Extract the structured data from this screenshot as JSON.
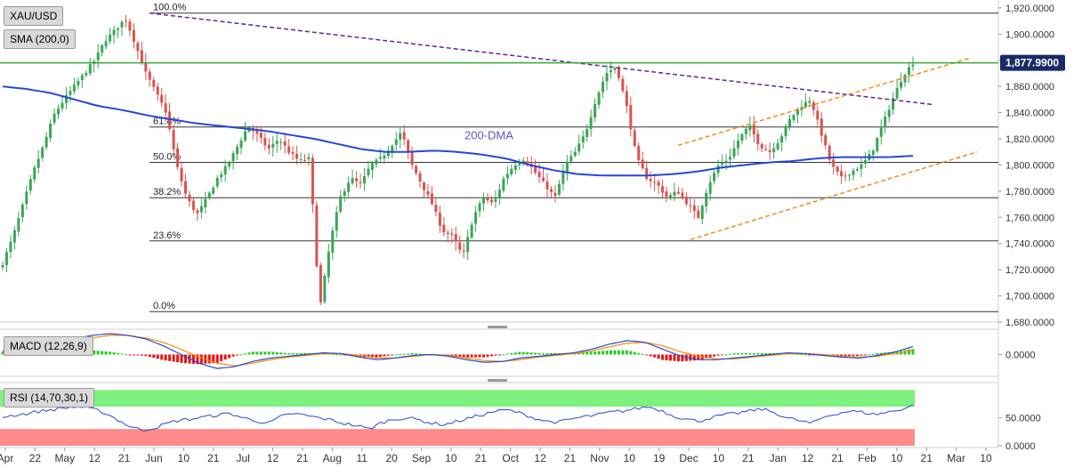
{
  "instrument": "XAU/USD",
  "colors": {
    "background": "#ffffff",
    "up_candle": "#3aa657",
    "down_candle": "#d9534f",
    "sma": "#2747d8",
    "fib_line": "#333333",
    "resistance_line": "#5b2a9a",
    "channel_line": "#f08c1a",
    "price_marker_line": "#33aa33",
    "price_badge": "#1a2c66",
    "macd_line": "#2747d8",
    "signal_line": "#ff8c00",
    "hist_pos": "#22cc22",
    "hist_neg": "#ee1111",
    "rsi_line": "#2747d8",
    "rsi_overbought_zone": "#7df07d",
    "rsi_oversold_zone": "#ff8a8a"
  },
  "indicators": {
    "sma_label": "SMA (200,0)",
    "macd_label": "MACD (12,26,9)",
    "rsi_label": "RSI (14,70,30,1)"
  },
  "annotations": {
    "dma_label": "200-DMA",
    "current_price": "1,877.9900"
  },
  "chart_data": {
    "type": "candlestick",
    "x_axis_labels": [
      "Apr",
      "22",
      "May",
      "12",
      "21",
      "Jun",
      "10",
      "21",
      "Jul",
      "12",
      "21",
      "Aug",
      "11",
      "20",
      "Sep",
      "10",
      "21",
      "Oct",
      "12",
      "21",
      "Nov",
      "10",
      "19",
      "Dec",
      "10",
      "21",
      "Jan",
      "12",
      "21",
      "Feb",
      "10",
      "21",
      "Mar",
      "10"
    ],
    "price_ticks": [
      "1,920.0000",
      "1,900.0000",
      "1,880.0000",
      "1,860.0000",
      "1,840.0000",
      "1,820.0000",
      "1,800.0000",
      "1,780.0000",
      "1,760.0000",
      "1,740.0000",
      "1,720.0000",
      "1,700.0000",
      "1,680.0000"
    ],
    "price_range": [
      1680,
      1926
    ],
    "fibonacci_levels": [
      {
        "label": "100.0%",
        "price": 1916
      },
      {
        "label": "61.8%",
        "price": 1829
      },
      {
        "label": "50.0%",
        "price": 1802
      },
      {
        "label": "38.2%",
        "price": 1775
      },
      {
        "label": "23.6%",
        "price": 1742
      },
      {
        "label": "0.0%",
        "price": 1688
      }
    ],
    "current_price": 1877.99,
    "price_key_points": [
      1725,
      1745,
      1770,
      1795,
      1815,
      1838,
      1850,
      1860,
      1870,
      1880,
      1895,
      1903,
      1912,
      1892,
      1870,
      1855,
      1840,
      1800,
      1775,
      1762,
      1775,
      1790,
      1800,
      1815,
      1830,
      1822,
      1812,
      1820,
      1810,
      1803,
      1805,
      1690,
      1740,
      1775,
      1790,
      1785,
      1800,
      1805,
      1815,
      1825,
      1800,
      1785,
      1770,
      1750,
      1745,
      1730,
      1760,
      1775,
      1770,
      1790,
      1800,
      1805,
      1795,
      1785,
      1775,
      1800,
      1810,
      1825,
      1850,
      1870,
      1875,
      1845,
      1805,
      1790,
      1785,
      1775,
      1780,
      1770,
      1760,
      1785,
      1800,
      1805,
      1820,
      1830,
      1815,
      1810,
      1820,
      1835,
      1845,
      1850,
      1825,
      1800,
      1790,
      1795,
      1800,
      1810,
      1830,
      1850,
      1868,
      1878
    ],
    "sma200_key_points": [
      1860,
      1858,
      1855,
      1850,
      1845,
      1842,
      1838,
      1835,
      1832,
      1830,
      1828,
      1826,
      1823,
      1820,
      1816,
      1812,
      1810,
      1810,
      1811,
      1810,
      1808,
      1805,
      1800,
      1796,
      1793,
      1792,
      1792,
      1792,
      1793,
      1795,
      1798,
      1800,
      1802,
      1803,
      1805,
      1806,
      1806,
      1806,
      1807
    ],
    "resistance_line": {
      "start_price": 1916,
      "end_price": 1846
    },
    "channel_upper": {
      "start_price": 1815,
      "end_price": 1882
    },
    "channel_lower": {
      "start_price": 1743,
      "end_price": 1810
    },
    "macd": {
      "yticks": [
        "0.0000"
      ],
      "macd_key_points": [
        4,
        5,
        8,
        12,
        18,
        22,
        24,
        22,
        18,
        10,
        0,
        -10,
        -16,
        -14,
        -8,
        -4,
        -2,
        0,
        2,
        1,
        -3,
        -6,
        -4,
        -1,
        0,
        -2,
        -6,
        -9,
        -8,
        -4,
        -2,
        0,
        2,
        6,
        12,
        16,
        14,
        6,
        -2,
        -6,
        -6,
        -4,
        -2,
        0,
        2,
        1,
        -1,
        -3,
        -4,
        -1,
        3,
        9
      ],
      "signal_key_points": [
        2,
        3,
        5,
        9,
        14,
        19,
        22,
        22,
        19,
        14,
        6,
        -3,
        -10,
        -13,
        -10,
        -6,
        -3,
        -1,
        1,
        1,
        -1,
        -4,
        -4,
        -2,
        0,
        -1,
        -4,
        -7,
        -8,
        -6,
        -3,
        -1,
        1,
        4,
        9,
        13,
        14,
        10,
        3,
        -2,
        -5,
        -5,
        -3,
        -1,
        1,
        1,
        0,
        -2,
        -3,
        -2,
        1,
        5
      ]
    },
    "rsi": {
      "yticks": [
        "50.0000",
        "0.0000"
      ],
      "overbought": 70,
      "oversold": 30,
      "rsi_key_points": [
        52,
        55,
        58,
        62,
        65,
        68,
        70,
        66,
        60,
        48,
        35,
        28,
        32,
        40,
        46,
        48,
        52,
        55,
        58,
        50,
        45,
        40,
        52,
        58,
        54,
        50,
        46,
        40,
        36,
        30,
        42,
        48,
        50,
        46,
        40,
        38,
        44,
        50,
        56,
        62,
        64,
        58,
        50,
        44,
        42,
        48,
        52,
        55,
        60,
        62,
        66,
        70,
        64,
        54,
        48,
        44,
        50,
        55,
        58,
        62,
        66,
        60,
        50,
        45,
        40,
        52,
        58,
        62,
        60,
        56,
        60,
        65,
        72
      ]
    }
  }
}
